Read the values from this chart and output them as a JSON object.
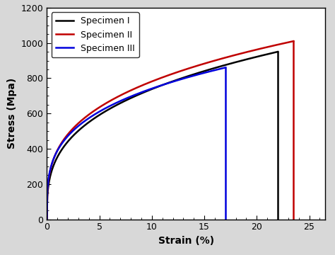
{
  "title": "",
  "xlabel": "Strain (%)",
  "ylabel": "Stress (Mpa)",
  "xlim": [
    0,
    26.5
  ],
  "ylim": [
    0,
    1200
  ],
  "xticks": [
    0,
    5,
    10,
    15,
    20,
    25
  ],
  "yticks": [
    0,
    200,
    400,
    600,
    800,
    1000,
    1200
  ],
  "specimens": [
    {
      "name": "Specimen I",
      "color": "#000000",
      "max_strain": 22.0,
      "max_stress": 950,
      "power": 0.32,
      "linewidth": 1.8
    },
    {
      "name": "Specimen II",
      "color": "#c00000",
      "max_strain": 23.5,
      "max_stress": 1010,
      "power": 0.3,
      "linewidth": 1.8
    },
    {
      "name": "Specimen III",
      "color": "#0000dd",
      "max_strain": 17.0,
      "max_stress": 860,
      "power": 0.28,
      "linewidth": 1.8
    }
  ],
  "legend_loc": "upper left",
  "legend_fontsize": 9,
  "axis_label_fontsize": 10,
  "tick_fontsize": 9,
  "background_color": "#ffffff",
  "fig_background": "#d8d8d8"
}
